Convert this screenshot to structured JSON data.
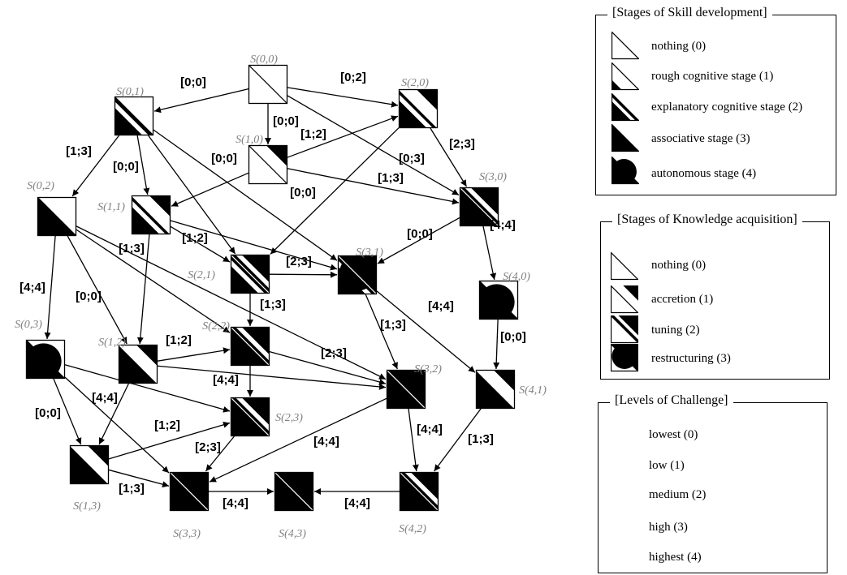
{
  "nodes": [
    {
      "id": "S00",
      "label": "S(0,0)",
      "skill": 0,
      "knowledge": 0
    },
    {
      "id": "S01",
      "label": "S(0,1)",
      "skill": 2,
      "knowledge": 0
    },
    {
      "id": "S02",
      "label": "S(0,2)",
      "skill": 3,
      "knowledge": 0
    },
    {
      "id": "S03",
      "label": "S(0,3)",
      "skill": 4,
      "knowledge": 0
    },
    {
      "id": "S10",
      "label": "S(1,0)",
      "skill": 0,
      "knowledge": 1
    },
    {
      "id": "S11",
      "label": "S(1,1)",
      "skill": 2,
      "knowledge": 1
    },
    {
      "id": "S12",
      "label": "S(1,2)",
      "skill": 3,
      "knowledge": 1
    },
    {
      "id": "S13",
      "label": "S(1,3)",
      "skill": 4,
      "knowledge": 1
    },
    {
      "id": "S20",
      "label": "S(2,0)",
      "skill": 2,
      "knowledge": 1
    },
    {
      "id": "S21",
      "label": "S(2,1)",
      "skill": 2,
      "knowledge": 2
    },
    {
      "id": "S22",
      "label": "S(2,2)",
      "skill": 3,
      "knowledge": 2
    },
    {
      "id": "S23",
      "label": "S(2,3)",
      "skill": 4,
      "knowledge": 2
    },
    {
      "id": "S30",
      "label": "S(3,0)",
      "skill": 3,
      "knowledge": 2
    },
    {
      "id": "S31",
      "label": "S(3,1)",
      "skill": 2,
      "knowledge": 3
    },
    {
      "id": "S32",
      "label": "S(3,2)",
      "skill": 3,
      "knowledge": 3
    },
    {
      "id": "S33",
      "label": "S(3,3)",
      "skill": 4,
      "knowledge": 3
    },
    {
      "id": "S40",
      "label": "S(4,0)",
      "skill": 4,
      "knowledge": 0
    },
    {
      "id": "S41",
      "label": "S(4,1)",
      "skill": 4,
      "knowledge": 1
    },
    {
      "id": "S42",
      "label": "S(4,2)",
      "skill": 4,
      "knowledge": 2
    },
    {
      "id": "S43",
      "label": "S(4,3)",
      "skill": 4,
      "knowledge": 3
    }
  ],
  "edges": [
    {
      "from": "S00",
      "to": "S01",
      "label": "[0;0]"
    },
    {
      "from": "S00",
      "to": "S10",
      "label": "[0;0]"
    },
    {
      "from": "S00",
      "to": "S20",
      "label": "[0;2]"
    },
    {
      "from": "S00",
      "to": "S30",
      "label": "[0;3]"
    },
    {
      "from": "S01",
      "to": "S02",
      "label": "[1;3]"
    },
    {
      "from": "S01",
      "to": "S11",
      "label": "[0;0]"
    },
    {
      "from": "S01",
      "to": "S21",
      "label": ""
    },
    {
      "from": "S01",
      "to": "S31",
      "label": ""
    },
    {
      "from": "S10",
      "to": "S11",
      "label": "[0;0]"
    },
    {
      "from": "S10",
      "to": "S20",
      "label": "[1;2]"
    },
    {
      "from": "S10",
      "to": "S30",
      "label": "[1;3]"
    },
    {
      "from": "S20",
      "to": "S21",
      "label": "[0;0]"
    },
    {
      "from": "S20",
      "to": "S30",
      "label": "[2;3]"
    },
    {
      "from": "S11",
      "to": "S21",
      "label": "[1;2]"
    },
    {
      "from": "S11",
      "to": "S31",
      "label": ""
    },
    {
      "from": "S11",
      "to": "S12",
      "label": "[1;3]"
    },
    {
      "from": "S02",
      "to": "S03",
      "label": "[4;4]"
    },
    {
      "from": "S02",
      "to": "S12",
      "label": "[0;0]"
    },
    {
      "from": "S02",
      "to": "S22",
      "label": ""
    },
    {
      "from": "S02",
      "to": "S32",
      "label": ""
    },
    {
      "from": "S30",
      "to": "S31",
      "label": "[0;0]"
    },
    {
      "from": "S30",
      "to": "S40",
      "label": "[4;4]"
    },
    {
      "from": "S21",
      "to": "S31",
      "label": "[2;3]"
    },
    {
      "from": "S21",
      "to": "S22",
      "label": "[1;3]"
    },
    {
      "from": "S31",
      "to": "S32",
      "label": "[1;3]"
    },
    {
      "from": "S31",
      "to": "S41",
      "label": "[4;4]"
    },
    {
      "from": "S40",
      "to": "S41",
      "label": "[0;0]"
    },
    {
      "from": "S12",
      "to": "S22",
      "label": "[1;2]"
    },
    {
      "from": "S12",
      "to": "S32",
      "label": ""
    },
    {
      "from": "S12",
      "to": "S13",
      "label": ""
    },
    {
      "from": "S22",
      "to": "S32",
      "label": "[2;3]"
    },
    {
      "from": "S22",
      "to": "S23",
      "label": "[4;4]"
    },
    {
      "from": "S03",
      "to": "S13",
      "label": "[0;0]"
    },
    {
      "from": "S03",
      "to": "S23",
      "label": ""
    },
    {
      "from": "S03",
      "to": "S33",
      "label": "[4;4]"
    },
    {
      "from": "S13",
      "to": "S23",
      "label": "[1;2]"
    },
    {
      "from": "S13",
      "to": "S33",
      "label": "[1;3]"
    },
    {
      "from": "S23",
      "to": "S33",
      "label": "[2;3]"
    },
    {
      "from": "S32",
      "to": "S33",
      "label": "[4;4]"
    },
    {
      "from": "S32",
      "to": "S42",
      "label": "[4;4]"
    },
    {
      "from": "S41",
      "to": "S42",
      "label": "[1;3]"
    },
    {
      "from": "S33",
      "to": "S43",
      "label": "[4;4]"
    },
    {
      "from": "S42",
      "to": "S43",
      "label": "[4;4]"
    }
  ],
  "legend_skill": {
    "title": "[Stages of Skill development]",
    "items": [
      "nothing (0)",
      "rough cognitive stage (1)",
      "explanatory cognitive stage (2)",
      "associative stage (3)",
      "autonomous stage (4)"
    ]
  },
  "legend_knowledge": {
    "title": "[Stages of Knowledge acquisition]",
    "items": [
      "nothing  (0)",
      "accretion (1)",
      "tuning  (2)",
      "restructuring (3)"
    ]
  },
  "legend_challenge": {
    "title": "[Levels of Challenge]",
    "items": [
      "lowest (0)",
      "low (1)",
      "medium  (2)",
      "high (3)",
      "highest (4)"
    ]
  }
}
